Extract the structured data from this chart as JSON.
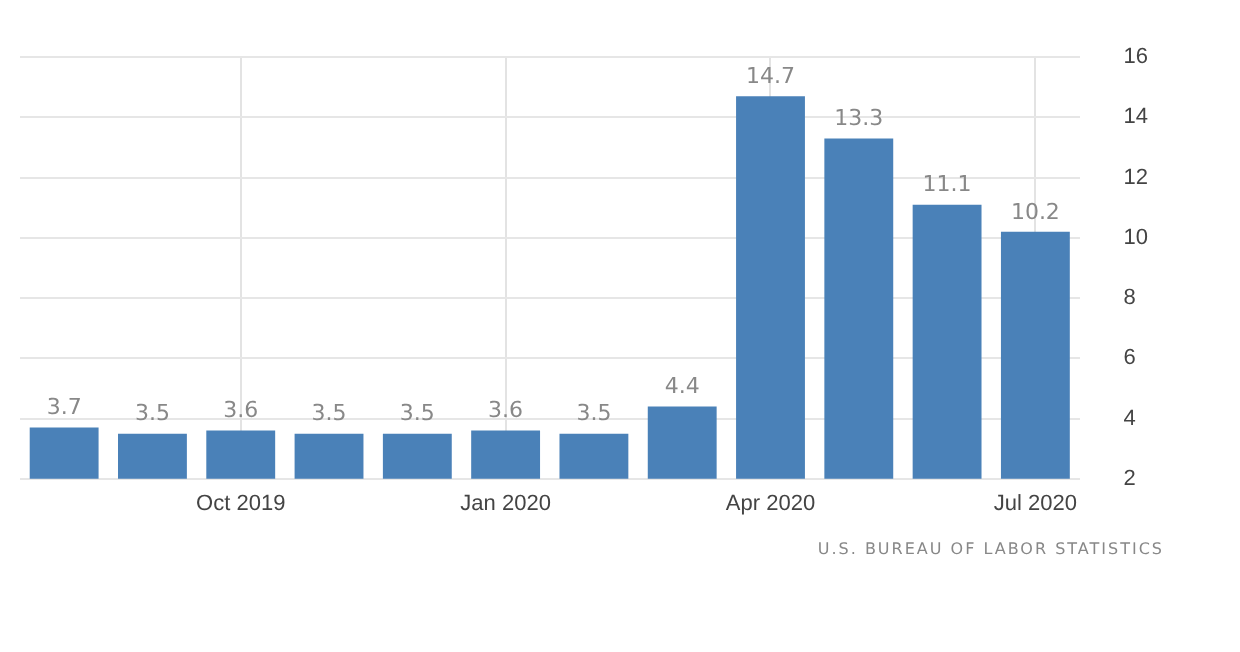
{
  "chart_data": {
    "type": "bar",
    "categories": [
      null,
      null,
      "Oct 2019",
      null,
      null,
      "Jan 2020",
      null,
      null,
      "Apr 2020",
      null,
      null,
      "Jul 2020"
    ],
    "values": [
      3.7,
      3.5,
      3.6,
      3.5,
      3.5,
      3.6,
      3.5,
      4.4,
      14.7,
      13.3,
      11.1,
      10.2
    ],
    "color": "#4a81b8",
    "ylim": [
      2,
      16
    ],
    "yticks": [
      2,
      4,
      6,
      8,
      10,
      12,
      14,
      16
    ],
    "grid": true,
    "legend": false,
    "data_labels": true,
    "annotations": [
      "U.S. BUREAU OF LABOR STATISTICS"
    ]
  }
}
